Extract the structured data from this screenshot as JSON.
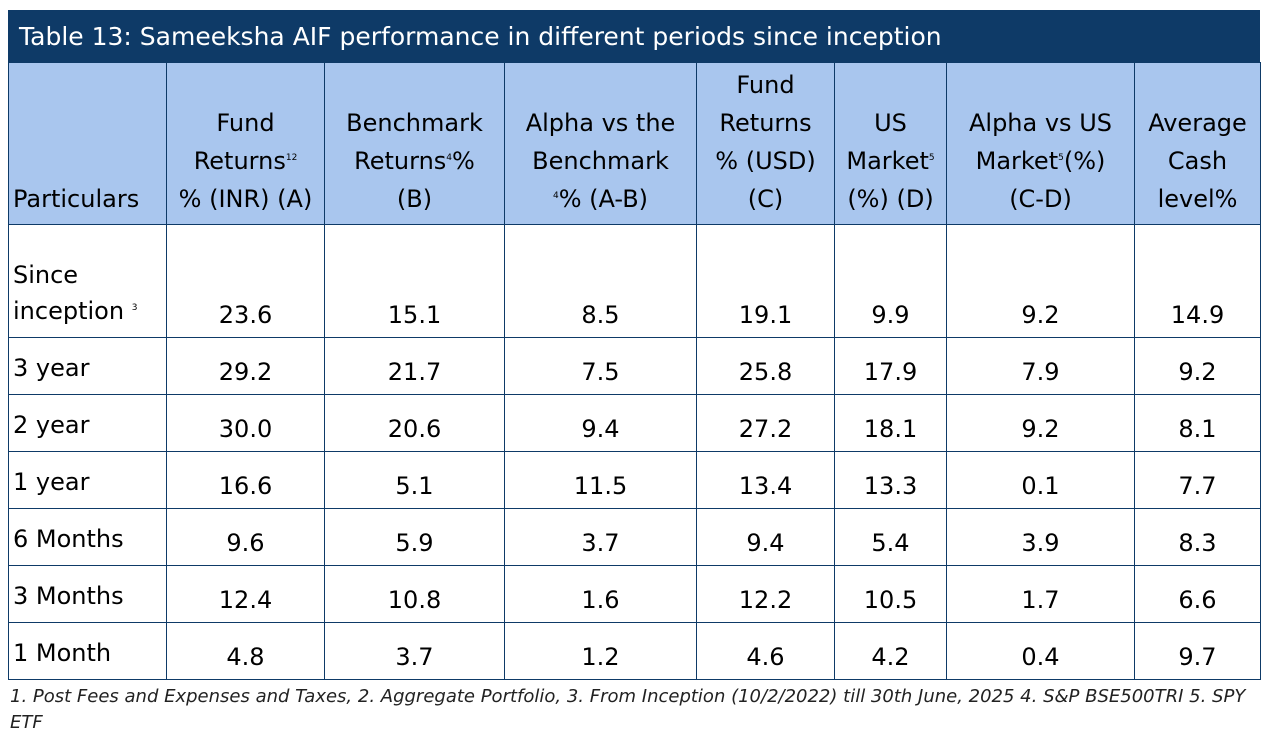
{
  "title": "Table 13: Sameeksha AIF performance in different periods since inception",
  "headers": [
    {
      "lines": [
        "Particulars"
      ],
      "sup": ""
    },
    {
      "lines": [
        "Fund",
        "Returns",
        "% (INR) (A)"
      ],
      "sup_after": "Returns",
      "sup": "12"
    },
    {
      "lines": [
        "Benchmark",
        "Returns",
        "(B)"
      ],
      "sup_after": "Returns",
      "sup": "4",
      "post_sup": "%"
    },
    {
      "lines": [
        "Alpha vs the",
        "Benchmark",
        "% (A-B)"
      ],
      "sup_before": "% (A-B)",
      "sup": "4"
    },
    {
      "lines": [
        "Fund",
        "Returns",
        "% (USD)",
        "(C)"
      ]
    },
    {
      "lines": [
        "US",
        "Market",
        "(%) (D)"
      ],
      "sup_after": "Market",
      "sup": "5"
    },
    {
      "lines": [
        "Alpha vs US",
        "Market",
        "(C-D)"
      ],
      "sup_after": "Market",
      "sup": "5",
      "post_sup": "(%)"
    },
    {
      "lines": [
        "Average",
        "Cash",
        "level%"
      ]
    }
  ],
  "rows": [
    {
      "label": [
        "Since",
        "inception"
      ],
      "label_sup": "3",
      "values": [
        "23.6",
        "15.1",
        "8.5",
        "19.1",
        "9.9",
        "9.2",
        "14.9"
      ]
    },
    {
      "label": [
        "3 year"
      ],
      "values": [
        "29.2",
        "21.7",
        "7.5",
        "25.8",
        "17.9",
        "7.9",
        "9.2"
      ]
    },
    {
      "label": [
        "2 year"
      ],
      "values": [
        "30.0",
        "20.6",
        "9.4",
        "27.2",
        "18.1",
        "9.2",
        "8.1"
      ]
    },
    {
      "label": [
        "1 year"
      ],
      "values": [
        "16.6",
        "5.1",
        "11.5",
        "13.4",
        "13.3",
        "0.1",
        "7.7"
      ]
    },
    {
      "label": [
        "6 Months"
      ],
      "values": [
        "9.6",
        "5.9",
        "3.7",
        "9.4",
        "5.4",
        "3.9",
        "8.3"
      ]
    },
    {
      "label": [
        "3 Months"
      ],
      "values": [
        "12.4",
        "10.8",
        "1.6",
        "12.2",
        "10.5",
        "1.7",
        "6.6"
      ]
    },
    {
      "label": [
        "1 Month"
      ],
      "values": [
        "4.8",
        "3.7",
        "1.2",
        "4.6",
        "4.2",
        "0.4",
        "9.7"
      ]
    }
  ],
  "footnote": "1. Post Fees and Expenses and Taxes, 2. Aggregate Portfolio, 3. From Inception (10/2/2022) till 30th June, 2025  4. S&P BSE500TRI 5. SPY ETF",
  "colors": {
    "title_bg": "#0e3a67",
    "header_bg": "#a9c6ee",
    "border": "#0e3a67"
  }
}
